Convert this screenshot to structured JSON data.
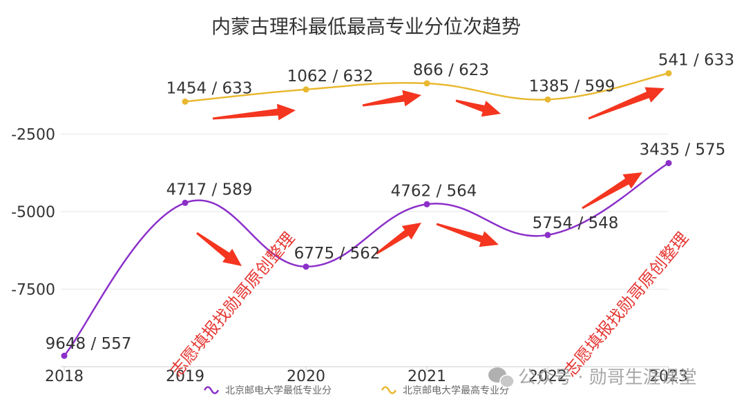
{
  "chart_data": {
    "type": "line",
    "title": "内蒙古理科最低最高专业分位次趋势",
    "x": [
      "2018",
      "2019",
      "2020",
      "2021",
      "2022",
      "2023"
    ],
    "y_ticks": [
      "-2500",
      "-5000",
      "-7500"
    ],
    "ylim": [
      -10000,
      0
    ],
    "grid": true,
    "legend_position": "bottom",
    "series": [
      {
        "name": "北京邮电大学最低专业分",
        "color": "#8b2fc9",
        "values": [
          -9648,
          -4717,
          -6775,
          -4762,
          -5754,
          -3435
        ],
        "labels": [
          "9648 / 557",
          "4717 / 589",
          "6775 / 562",
          "4762 / 564",
          "5754 / 548",
          "3435 / 575"
        ]
      },
      {
        "name": "北京邮电大学最高专业分",
        "color": "#e8b830",
        "values": [
          null,
          -1454,
          -1062,
          -866,
          -1385,
          -541
        ],
        "labels": [
          null,
          "1454 / 633",
          "1062 / 632",
          "866 / 623",
          "1385 / 599",
          "541 / 633"
        ]
      }
    ],
    "annotations": {
      "arrow_color": "#f4351f",
      "watermark_red": "志愿填报找勋哥原创整理",
      "watermark_wechat": "公众号 · 勋哥生涯课堂"
    }
  }
}
